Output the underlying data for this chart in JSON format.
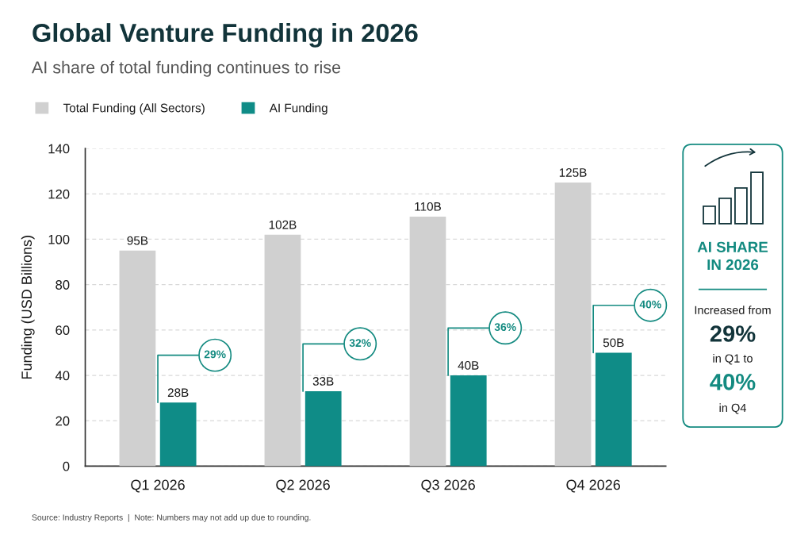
{
  "chart_data": [
    {
      "type": "bar",
      "title": "Global Venture Funding in 2026",
      "subtitle": "AI share of total funding continues to rise",
      "ylabel": "Funding (USD Billions)",
      "categories": [
        "Q1 2026",
        "Q2 2026",
        "Q3 2026",
        "Q4 2026"
      ],
      "series": [
        {
          "name": "Total Funding (All Sectors)",
          "color": "#d0d0d0",
          "values": [
            95,
            102,
            110,
            125
          ],
          "value_labels": [
            "95B",
            "102B",
            "110B",
            "125B"
          ]
        },
        {
          "name": "AI Funding",
          "color": "#0f8c87",
          "values": [
            28,
            33,
            40,
            50
          ],
          "value_labels": [
            "28B",
            "33B",
            "40B",
            "50B"
          ]
        }
      ],
      "ylim": [
        0,
        140
      ],
      "yticks": [
        0,
        20,
        40,
        60,
        80,
        100,
        120,
        140
      ],
      "grid": "y",
      "legend": "top left",
      "annotations": [
        {
          "text": "29%",
          "x": "Q1 2026",
          "y": 28
        },
        {
          "text": "32%",
          "x": "Q2 2026",
          "y": 33
        },
        {
          "text": "36%",
          "x": "Q3 2026",
          "y": 40
        },
        {
          "text": "40%",
          "x": "Q4 2026",
          "y": 50
        },
        "Source: Industry Reports  |  Note: Numbers may not add up due to rounding."
      ]
    },
    {
      "type": "other",
      "title": "AI SHARE IN 2026",
      "annotations": [
        "Increased from",
        "29%",
        "in Q1 to",
        "40%",
        "in Q4"
      ]
    }
  ]
}
